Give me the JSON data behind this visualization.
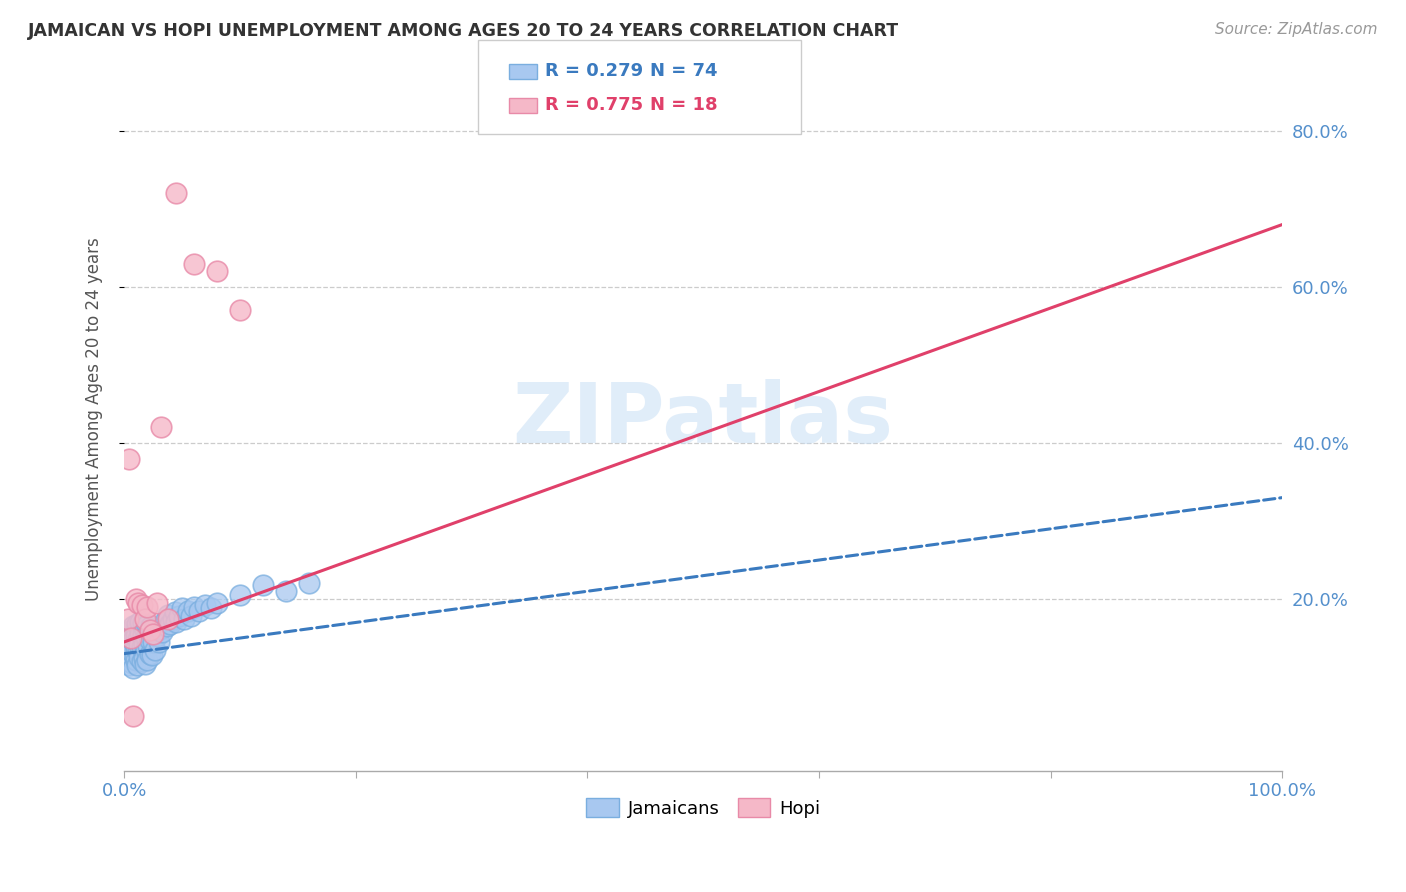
{
  "title": "JAMAICAN VS HOPI UNEMPLOYMENT AMONG AGES 20 TO 24 YEARS CORRELATION CHART",
  "source": "Source: ZipAtlas.com",
  "ylabel": "Unemployment Among Ages 20 to 24 years",
  "xlim": [
    0.0,
    1.0
  ],
  "ylim": [
    -0.02,
    0.88
  ],
  "x_ticks": [
    0.0,
    0.2,
    0.4,
    0.6,
    0.8,
    1.0
  ],
  "x_tick_labels": [
    "0.0%",
    "",
    "",
    "",
    "",
    "100.0%"
  ],
  "y_ticks_right": [
    0.2,
    0.4,
    0.6,
    0.8
  ],
  "y_tick_labels_right": [
    "20.0%",
    "40.0%",
    "60.0%",
    "80.0%"
  ],
  "jamaicans_color": "#a8c8f0",
  "jamaicans_edge_color": "#7aaedf",
  "hopi_color": "#f5b8c8",
  "hopi_edge_color": "#e88aa8",
  "jamaicans_line_color": "#3a7abf",
  "hopi_line_color": "#e0406a",
  "legend_R_jamaicans": "0.279",
  "legend_N_jamaicans": "74",
  "legend_R_hopi": "0.775",
  "legend_N_hopi": "18",
  "watermark": "ZIPatlas",
  "background_color": "#ffffff",
  "tick_color": "#5590cc",
  "jamaicans_x": [
    0.002,
    0.003,
    0.004,
    0.004,
    0.005,
    0.005,
    0.006,
    0.006,
    0.007,
    0.007,
    0.007,
    0.008,
    0.008,
    0.008,
    0.009,
    0.009,
    0.01,
    0.01,
    0.01,
    0.01,
    0.011,
    0.011,
    0.012,
    0.012,
    0.013,
    0.013,
    0.014,
    0.014,
    0.015,
    0.015,
    0.016,
    0.016,
    0.017,
    0.017,
    0.018,
    0.018,
    0.019,
    0.019,
    0.02,
    0.02,
    0.021,
    0.021,
    0.022,
    0.022,
    0.023,
    0.024,
    0.025,
    0.026,
    0.027,
    0.028,
    0.03,
    0.031,
    0.033,
    0.035,
    0.037,
    0.038,
    0.04,
    0.042,
    0.044,
    0.045,
    0.047,
    0.05,
    0.052,
    0.055,
    0.058,
    0.06,
    0.065,
    0.07,
    0.075,
    0.08,
    0.1,
    0.12,
    0.14,
    0.16
  ],
  "jamaicans_y": [
    0.12,
    0.135,
    0.145,
    0.115,
    0.13,
    0.155,
    0.125,
    0.14,
    0.16,
    0.118,
    0.132,
    0.148,
    0.112,
    0.165,
    0.128,
    0.143,
    0.158,
    0.122,
    0.137,
    0.152,
    0.168,
    0.116,
    0.133,
    0.149,
    0.126,
    0.141,
    0.156,
    0.17,
    0.12,
    0.138,
    0.154,
    0.169,
    0.125,
    0.143,
    0.16,
    0.117,
    0.136,
    0.151,
    0.167,
    0.122,
    0.14,
    0.157,
    0.13,
    0.148,
    0.165,
    0.128,
    0.145,
    0.162,
    0.135,
    0.152,
    0.145,
    0.162,
    0.158,
    0.172,
    0.165,
    0.18,
    0.168,
    0.175,
    0.183,
    0.17,
    0.178,
    0.188,
    0.175,
    0.185,
    0.178,
    0.19,
    0.185,
    0.192,
    0.188,
    0.195,
    0.205,
    0.218,
    0.21,
    0.22
  ],
  "hopi_x": [
    0.003,
    0.004,
    0.006,
    0.008,
    0.01,
    0.012,
    0.015,
    0.018,
    0.02,
    0.022,
    0.025,
    0.028,
    0.032,
    0.038,
    0.045,
    0.06,
    0.08,
    0.1
  ],
  "hopi_y": [
    0.175,
    0.38,
    0.15,
    0.05,
    0.2,
    0.195,
    0.192,
    0.175,
    0.19,
    0.16,
    0.155,
    0.195,
    0.42,
    0.175,
    0.72,
    0.63,
    0.62,
    0.57
  ],
  "jamaican_regression": [
    0.13,
    0.33
  ],
  "hopi_regression": [
    0.145,
    0.68
  ]
}
